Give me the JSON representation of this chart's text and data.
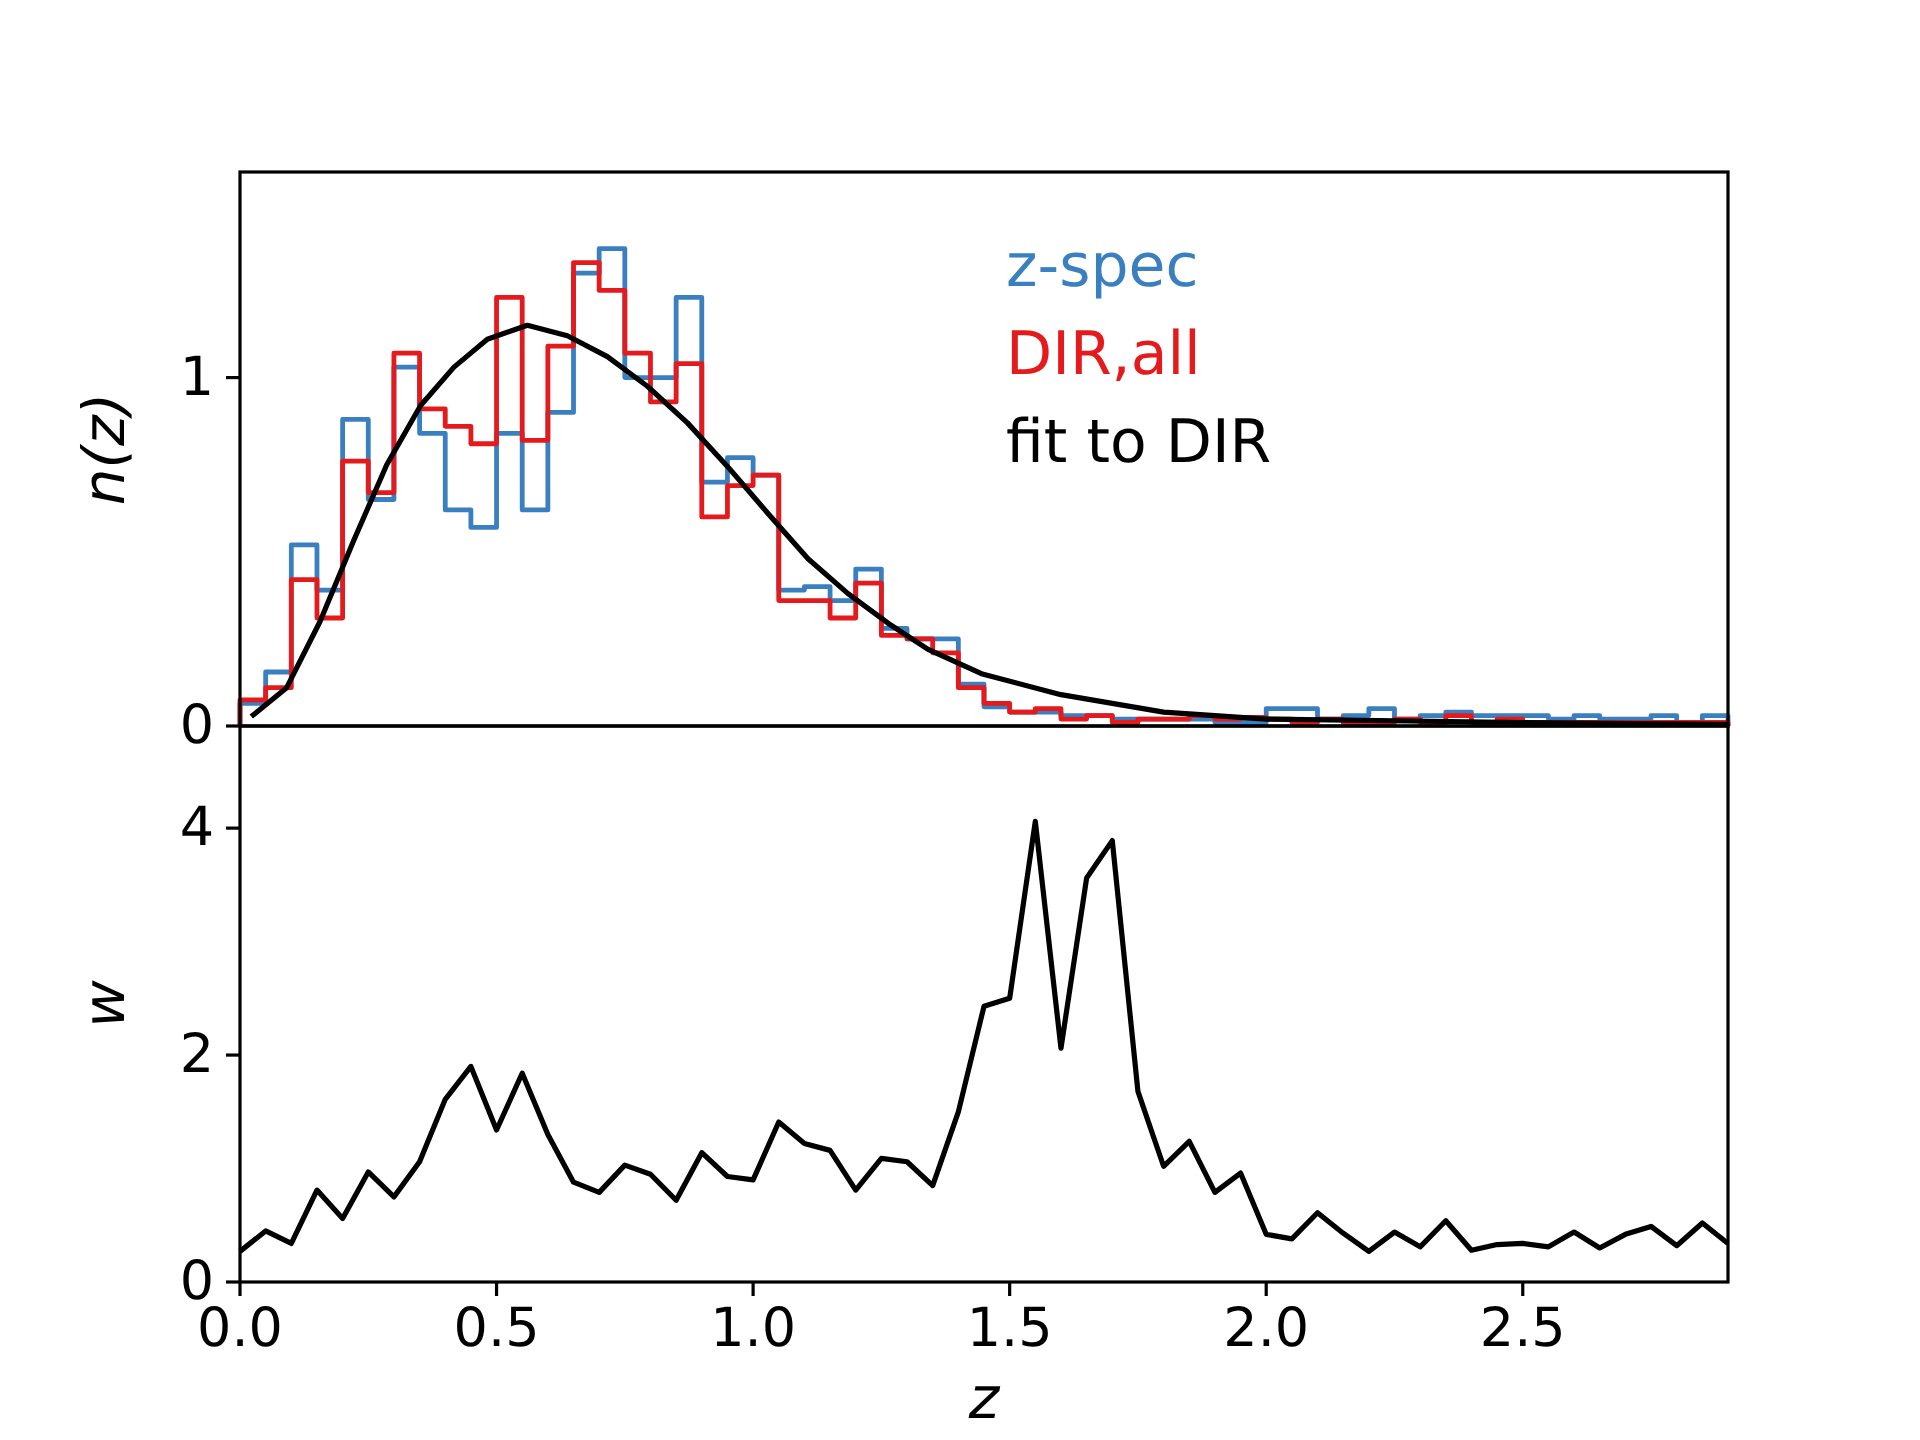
{
  "chart_data": [
    {
      "type": "histogram",
      "ylabel": "n(z)",
      "legend": "top right",
      "xlim": [
        0,
        2.9
      ],
      "ylim": [
        0,
        1.59
      ],
      "yticks": [
        0,
        1
      ],
      "tick_labels": "y",
      "bins": [
        0,
        0.05,
        0.1,
        0.15,
        0.2,
        0.25,
        0.3,
        0.35,
        0.4,
        0.45,
        0.5,
        0.55,
        0.6,
        0.65,
        0.7,
        0.75,
        0.8,
        0.85,
        0.9,
        0.95,
        1.0,
        1.05,
        1.1,
        1.15,
        1.2,
        1.25,
        1.3,
        1.35,
        1.4,
        1.45,
        1.5,
        1.55,
        1.6,
        1.65,
        1.7,
        1.75,
        1.8,
        1.85,
        1.9,
        1.95,
        2.0,
        2.05,
        2.1,
        2.15,
        2.2,
        2.25,
        2.3,
        2.35,
        2.4,
        2.45,
        2.5,
        2.55,
        2.6,
        2.65,
        2.7,
        2.75,
        2.8,
        2.85,
        2.9
      ],
      "series": [
        {
          "name": "z-spec",
          "color": "#3a7fc0",
          "values": [
            0.065,
            0.155,
            0.52,
            0.39,
            0.88,
            0.65,
            1.03,
            0.84,
            0.62,
            0.57,
            0.84,
            0.62,
            0.9,
            1.3,
            1.37,
            1.0,
            1.0,
            1.23,
            0.7,
            0.77,
            0.72,
            0.39,
            0.4,
            0.36,
            0.45,
            0.28,
            0.25,
            0.25,
            0.12,
            0.055,
            0.04,
            0.04,
            0.03,
            0.03,
            0.02,
            0.02,
            0.02,
            0.02,
            0.01,
            0.01,
            0.05,
            0.05,
            0.02,
            0.03,
            0.05,
            0.02,
            0.03,
            0.04,
            0.03,
            0.03,
            0.03,
            0.02,
            0.03,
            0.02,
            0.02,
            0.03,
            0.01,
            0.03
          ]
        },
        {
          "name": "DIR,all",
          "color": "#e41a1c",
          "values": [
            0.075,
            0.11,
            0.42,
            0.31,
            0.76,
            0.67,
            1.07,
            0.91,
            0.86,
            0.81,
            1.23,
            0.82,
            1.09,
            1.33,
            1.25,
            1.07,
            0.93,
            1.04,
            0.6,
            0.69,
            0.72,
            0.36,
            0.36,
            0.31,
            0.41,
            0.26,
            0.25,
            0.21,
            0.11,
            0.065,
            0.04,
            0.05,
            0.02,
            0.03,
            0.01,
            0.02,
            0.02,
            0.03,
            0.02,
            0.025,
            0.02,
            0.01,
            0.02,
            0.01,
            0.01,
            0.02,
            0.01,
            0.03,
            0.01,
            0.02,
            0.01,
            0.01,
            0.01,
            0.01,
            0.01,
            0.01,
            0.01,
            0.01
          ]
        },
        {
          "name": "fit to DIR",
          "type": "line",
          "color": "#000000",
          "x": [
            0.022,
            0.091,
            0.156,
            0.221,
            0.286,
            0.352,
            0.417,
            0.482,
            0.56,
            0.638,
            0.716,
            0.794,
            0.872,
            0.95,
            1.029,
            1.107,
            1.185,
            1.263,
            1.341,
            1.445,
            1.6,
            1.8,
            2.0,
            2.5,
            2.9
          ],
          "values": [
            0.027,
            0.11,
            0.3,
            0.53,
            0.75,
            0.92,
            1.03,
            1.11,
            1.15,
            1.12,
            1.06,
            0.975,
            0.87,
            0.745,
            0.61,
            0.48,
            0.38,
            0.295,
            0.22,
            0.15,
            0.09,
            0.04,
            0.02,
            0.01,
            0.005
          ]
        }
      ]
    },
    {
      "type": "line",
      "xlabel": "z",
      "ylabel": "w",
      "xlim": [
        0,
        2.9
      ],
      "ylim": [
        0,
        4.9
      ],
      "xticks": [
        {
          "value": 0,
          "label": "0.0"
        },
        0.5,
        {
          "value": 1,
          "label": "1.0"
        },
        1.5,
        {
          "value": 2,
          "label": "2.0"
        },
        2.5
      ],
      "yticks": [
        0,
        2,
        4
      ],
      "x": [
        0,
        0.05,
        0.1,
        0.15,
        0.2,
        0.25,
        0.3,
        0.35,
        0.4,
        0.45,
        0.5,
        0.55,
        0.6,
        0.65,
        0.7,
        0.75,
        0.8,
        0.85,
        0.9,
        0.95,
        1.0,
        1.05,
        1.1,
        1.15,
        1.2,
        1.25,
        1.3,
        1.35,
        1.4,
        1.45,
        1.5,
        1.55,
        1.6,
        1.65,
        1.7,
        1.75,
        1.8,
        1.85,
        1.9,
        1.95,
        2.0,
        2.05,
        2.1,
        2.15,
        2.2,
        2.25,
        2.3,
        2.35,
        2.4,
        2.45,
        2.5,
        2.55,
        2.6,
        2.65,
        2.7,
        2.75,
        2.8,
        2.85,
        2.9
      ],
      "series": [
        {
          "color": "#000000",
          "values": [
            0.27,
            0.45,
            0.34,
            0.81,
            0.56,
            0.97,
            0.75,
            1.06,
            1.61,
            1.9,
            1.34,
            1.84,
            1.3,
            0.88,
            0.79,
            1.03,
            0.95,
            0.72,
            1.14,
            0.93,
            0.9,
            1.41,
            1.22,
            1.16,
            0.81,
            1.09,
            1.06,
            0.85,
            1.5,
            2.43,
            2.5,
            4.06,
            2.06,
            3.56,
            3.89,
            1.68,
            1.02,
            1.24,
            0.79,
            0.96,
            0.42,
            0.38,
            0.61,
            0.43,
            0.27,
            0.44,
            0.31,
            0.54,
            0.28,
            0.33,
            0.34,
            0.31,
            0.44,
            0.3,
            0.42,
            0.49,
            0.32,
            0.52,
            0.34
          ]
        }
      ]
    }
  ]
}
